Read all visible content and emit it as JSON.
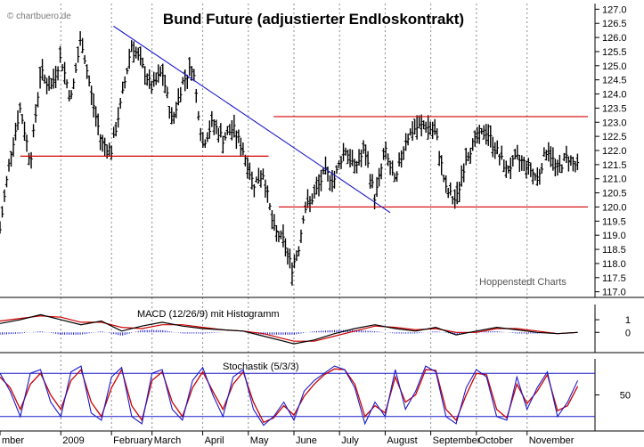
{
  "watermark": "© chartbuero.de",
  "attribution": "Hoppenstedt Charts",
  "colors": {
    "price": "#000000",
    "support_resistance": "#d40000",
    "trendline": "#1a1acc",
    "macd_line": "#000000",
    "signal_line": "#cc0000",
    "histogram": "#1a1acc",
    "stoch_k": "#1a1acc",
    "stoch_d": "#cc0000",
    "grid": "#8a8a8a"
  },
  "chart_data": [
    {
      "type": "ohlc",
      "title": "Bund Future (adjustierter Endloskontrakt)",
      "ylim": [
        116.8,
        127.2
      ],
      "yticks": [
        117.0,
        117.5,
        118.0,
        118.5,
        119.0,
        119.5,
        120.0,
        120.5,
        121.0,
        121.5,
        122.0,
        122.5,
        123.0,
        123.5,
        124.0,
        124.5,
        125.0,
        125.5,
        126.0,
        126.5,
        127.0
      ],
      "ytick_labels": [
        "117.0",
        "117.5",
        "118.0",
        "118.5",
        "119.0",
        "119.5",
        "120.0",
        "120.5",
        "121.0",
        "121.5",
        "122.0",
        "122.5",
        "123.0",
        "123.5",
        "124.0",
        "124.5",
        "125.0",
        "125.5",
        "126.0",
        "126.5",
        "127.0"
      ],
      "x_range": [
        0,
        58
      ],
      "month_ticks": [
        {
          "x": 0,
          "label": "mber"
        },
        {
          "x": 6,
          "label": "2009"
        },
        {
          "x": 11,
          "label": "February"
        },
        {
          "x": 15,
          "label": "March"
        },
        {
          "x": 20,
          "label": "April"
        },
        {
          "x": 24.5,
          "label": "May"
        },
        {
          "x": 29,
          "label": "June"
        },
        {
          "x": 33.5,
          "label": "July"
        },
        {
          "x": 38,
          "label": "August"
        },
        {
          "x": 42.5,
          "label": "September"
        },
        {
          "x": 47,
          "label": "October"
        },
        {
          "x": 52,
          "label": "November"
        }
      ],
      "close_path": [
        [
          0,
          119.2
        ],
        [
          1,
          121.8
        ],
        [
          2,
          123.5
        ],
        [
          3,
          121.6
        ],
        [
          4,
          124.8
        ],
        [
          5,
          124.2
        ],
        [
          6,
          125.3
        ],
        [
          7,
          123.8
        ],
        [
          8,
          126.0
        ],
        [
          9,
          124.0
        ],
        [
          10,
          122.3
        ],
        [
          11,
          122.0
        ],
        [
          12,
          123.8
        ],
        [
          13,
          125.8
        ],
        [
          14,
          125.0
        ],
        [
          15,
          124.2
        ],
        [
          16,
          124.8
        ],
        [
          17,
          123.0
        ],
        [
          18,
          124.4
        ],
        [
          19,
          125.0
        ],
        [
          20,
          122.2
        ],
        [
          21,
          123.0
        ],
        [
          22,
          122.4
        ],
        [
          23,
          122.8
        ],
        [
          24,
          122.0
        ],
        [
          25,
          120.8
        ],
        [
          26,
          121.2
        ],
        [
          27,
          119.2
        ],
        [
          28,
          118.8
        ],
        [
          28.8,
          117.8
        ],
        [
          29.5,
          118.6
        ],
        [
          30,
          119.9
        ],
        [
          31,
          120.4
        ],
        [
          32,
          121.2
        ],
        [
          33,
          121.0
        ],
        [
          34,
          122.1
        ],
        [
          35,
          121.4
        ],
        [
          36,
          122.0
        ],
        [
          37,
          120.3
        ],
        [
          38,
          122.0
        ],
        [
          39,
          120.8
        ],
        [
          40,
          122.4
        ],
        [
          41,
          122.8
        ],
        [
          42,
          122.9
        ],
        [
          43,
          122.6
        ],
        [
          44,
          120.6
        ],
        [
          45,
          120.2
        ],
        [
          46,
          121.8
        ],
        [
          47,
          122.4
        ],
        [
          48,
          122.7
        ],
        [
          49,
          122.0
        ],
        [
          50,
          121.3
        ],
        [
          51,
          121.7
        ],
        [
          52,
          121.5
        ],
        [
          53,
          121.0
        ],
        [
          54,
          122.1
        ],
        [
          55,
          121.3
        ],
        [
          56,
          121.8
        ],
        [
          57,
          121.4
        ]
      ],
      "lines": [
        {
          "kind": "horizontal",
          "y": 123.2,
          "x_from": 27,
          "x_to": 58
        },
        {
          "kind": "horizontal",
          "y": 121.8,
          "x_from": 2,
          "x_to": 26.5
        },
        {
          "kind": "horizontal",
          "y": 120.0,
          "x_from": 27.5,
          "x_to": 58
        },
        {
          "kind": "trend",
          "from": [
            11.2,
            126.4
          ],
          "to": [
            38.5,
            119.8
          ]
        }
      ]
    },
    {
      "type": "line",
      "title": "MACD (12/26/9) mit Histogramm",
      "ylim": [
        -1.6,
        2.2
      ],
      "yticks": [
        1,
        0
      ],
      "ytick_labels": [
        "1",
        "0"
      ],
      "series": [
        {
          "values": [
            [
              0,
              0.7
            ],
            [
              2,
              1.0
            ],
            [
              4,
              1.4
            ],
            [
              6,
              1.0
            ],
            [
              8,
              0.6
            ],
            [
              10,
              0.9
            ],
            [
              12,
              0.1
            ],
            [
              14,
              0.5
            ],
            [
              16,
              0.8
            ],
            [
              18,
              0.5
            ],
            [
              20,
              0.3
            ],
            [
              22,
              0.2
            ],
            [
              24,
              0.1
            ],
            [
              26,
              -0.3
            ],
            [
              28,
              -0.7
            ],
            [
              29,
              -0.9
            ],
            [
              31,
              -0.6
            ],
            [
              33,
              -0.1
            ],
            [
              35,
              0.3
            ],
            [
              37,
              0.6
            ],
            [
              39,
              0.3
            ],
            [
              41,
              0.1
            ],
            [
              43,
              0.4
            ],
            [
              45,
              -0.2
            ],
            [
              47,
              0.1
            ],
            [
              49,
              0.4
            ],
            [
              51,
              0.2
            ],
            [
              53,
              0.0
            ],
            [
              55,
              -0.1
            ],
            [
              57,
              0.0
            ]
          ]
        },
        {
          "values": [
            [
              0,
              0.9
            ],
            [
              2,
              1.1
            ],
            [
              4,
              1.3
            ],
            [
              6,
              1.2
            ],
            [
              8,
              0.8
            ],
            [
              10,
              0.8
            ],
            [
              12,
              0.4
            ],
            [
              14,
              0.3
            ],
            [
              16,
              0.6
            ],
            [
              18,
              0.6
            ],
            [
              20,
              0.4
            ],
            [
              22,
              0.2
            ],
            [
              24,
              0.1
            ],
            [
              26,
              -0.1
            ],
            [
              28,
              -0.5
            ],
            [
              29,
              -0.7
            ],
            [
              31,
              -0.7
            ],
            [
              33,
              -0.3
            ],
            [
              35,
              0.1
            ],
            [
              37,
              0.5
            ],
            [
              39,
              0.4
            ],
            [
              41,
              0.2
            ],
            [
              43,
              0.3
            ],
            [
              45,
              0.0
            ],
            [
              47,
              0.0
            ],
            [
              49,
              0.3
            ],
            [
              51,
              0.3
            ],
            [
              53,
              0.1
            ],
            [
              55,
              -0.1
            ],
            [
              57,
              0.0
            ]
          ]
        }
      ]
    },
    {
      "type": "line",
      "title": "Stochastik (5/3/3)",
      "ylim": [
        0,
        100
      ],
      "yticks": [
        50
      ],
      "ytick_labels": [
        "50"
      ],
      "reference_lines": [
        80,
        20
      ],
      "series": [
        {
          "values": [
            [
              0,
              80
            ],
            [
              1,
              55
            ],
            [
              2,
              20
            ],
            [
              3,
              80
            ],
            [
              4,
              85
            ],
            [
              5,
              40
            ],
            [
              6,
              20
            ],
            [
              7,
              82
            ],
            [
              8,
              90
            ],
            [
              9,
              25
            ],
            [
              10,
              15
            ],
            [
              11,
              75
            ],
            [
              12,
              88
            ],
            [
              13,
              20
            ],
            [
              14,
              10
            ],
            [
              15,
              80
            ],
            [
              16,
              85
            ],
            [
              17,
              30
            ],
            [
              18,
              15
            ],
            [
              19,
              70
            ],
            [
              20,
              88
            ],
            [
              21,
              50
            ],
            [
              22,
              20
            ],
            [
              23,
              75
            ],
            [
              24,
              85
            ],
            [
              25,
              30
            ],
            [
              26,
              8
            ],
            [
              27,
              20
            ],
            [
              28,
              40
            ],
            [
              29,
              15
            ],
            [
              30,
              55
            ],
            [
              31,
              70
            ],
            [
              32,
              80
            ],
            [
              33,
              90
            ],
            [
              34,
              85
            ],
            [
              35,
              60
            ],
            [
              36,
              10
            ],
            [
              37,
              40
            ],
            [
              38,
              20
            ],
            [
              39,
              85
            ],
            [
              40,
              30
            ],
            [
              41,
              55
            ],
            [
              42,
              90
            ],
            [
              43,
              82
            ],
            [
              44,
              20
            ],
            [
              45,
              10
            ],
            [
              46,
              60
            ],
            [
              47,
              85
            ],
            [
              48,
              75
            ],
            [
              49,
              20
            ],
            [
              50,
              15
            ],
            [
              51,
              75
            ],
            [
              52,
              30
            ],
            [
              53,
              60
            ],
            [
              54,
              82
            ],
            [
              55,
              20
            ],
            [
              56,
              40
            ],
            [
              57,
              70
            ]
          ]
        },
        {
          "values": [
            [
              0,
              75
            ],
            [
              1,
              60
            ],
            [
              2,
              30
            ],
            [
              3,
              65
            ],
            [
              4,
              80
            ],
            [
              5,
              50
            ],
            [
              6,
              30
            ],
            [
              7,
              70
            ],
            [
              8,
              85
            ],
            [
              9,
              40
            ],
            [
              10,
              20
            ],
            [
              11,
              60
            ],
            [
              12,
              85
            ],
            [
              13,
              35
            ],
            [
              14,
              15
            ],
            [
              15,
              70
            ],
            [
              16,
              82
            ],
            [
              17,
              40
            ],
            [
              18,
              20
            ],
            [
              19,
              60
            ],
            [
              20,
              82
            ],
            [
              21,
              55
            ],
            [
              22,
              30
            ],
            [
              23,
              65
            ],
            [
              24,
              82
            ],
            [
              25,
              40
            ],
            [
              26,
              12
            ],
            [
              27,
              18
            ],
            [
              28,
              35
            ],
            [
              29,
              22
            ],
            [
              30,
              48
            ],
            [
              31,
              65
            ],
            [
              32,
              78
            ],
            [
              33,
              86
            ],
            [
              34,
              85
            ],
            [
              35,
              65
            ],
            [
              36,
              20
            ],
            [
              37,
              35
            ],
            [
              38,
              25
            ],
            [
              39,
              75
            ],
            [
              40,
              40
            ],
            [
              41,
              50
            ],
            [
              42,
              85
            ],
            [
              43,
              84
            ],
            [
              44,
              30
            ],
            [
              45,
              15
            ],
            [
              46,
              50
            ],
            [
              47,
              80
            ],
            [
              48,
              78
            ],
            [
              49,
              30
            ],
            [
              50,
              18
            ],
            [
              51,
              65
            ],
            [
              52,
              38
            ],
            [
              53,
              55
            ],
            [
              54,
              78
            ],
            [
              55,
              28
            ],
            [
              56,
              35
            ],
            [
              57,
              62
            ]
          ]
        }
      ]
    }
  ]
}
